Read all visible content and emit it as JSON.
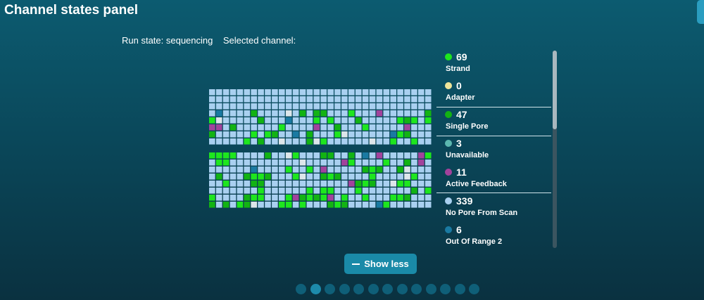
{
  "header": {
    "title": "Channel states panel"
  },
  "status": {
    "run_state": "Run state: sequencing",
    "selected_channel": "Selected channel:"
  },
  "legend": {
    "items": [
      {
        "count": 69,
        "label": "Strand",
        "color": "#1ee61e"
      },
      {
        "count": 0,
        "label": "Adapter",
        "color": "#efe59a"
      },
      {
        "count": 47,
        "label": "Single Pore",
        "color": "#13b313"
      },
      {
        "count": 3,
        "label": "Unavailable",
        "color": "#5cb8b0"
      },
      {
        "count": 11,
        "label": "Active Feedback",
        "color": "#a2429c"
      },
      {
        "count": 339,
        "label": "No Pore From Scan",
        "color": "#a9d0f0"
      },
      {
        "count": 6,
        "label": "Out Of Range 2",
        "color": "#1a7aa2"
      }
    ]
  },
  "button": {
    "label": "Show less"
  }
}
